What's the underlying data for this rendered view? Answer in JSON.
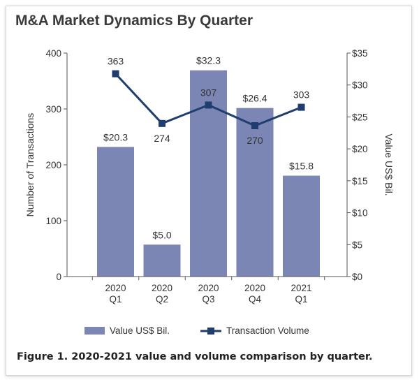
{
  "chart_data": {
    "type": "bar",
    "title": "M&A Market Dynamics By Quarter",
    "categories": [
      [
        "2020",
        "Q1"
      ],
      [
        "2020",
        "Q2"
      ],
      [
        "2020",
        "Q3"
      ],
      [
        "2020",
        "Q4"
      ],
      [
        "2021",
        "Q1"
      ]
    ],
    "series": [
      {
        "name": "Value US$ Bil.",
        "type": "bar",
        "axis": "right",
        "values": [
          20.3,
          5.0,
          32.3,
          26.4,
          15.8
        ],
        "labels": [
          "$20.3",
          "$5.0",
          "$32.3",
          "$26.4",
          "$15.8"
        ],
        "color": "#7b86b5"
      },
      {
        "name": "Transaction Volume",
        "type": "line",
        "axis": "left",
        "values": [
          363,
          274,
          307,
          270,
          303
        ],
        "labels": [
          "363",
          "274",
          "307",
          "270",
          "303"
        ],
        "color": "#1f3d6e"
      }
    ],
    "y_left": {
      "label": "Number of Transactions",
      "range": [
        0,
        400
      ],
      "ticks": [
        0,
        100,
        200,
        300,
        400
      ],
      "tick_labels": [
        "0",
        "100",
        "200",
        "300",
        "400"
      ]
    },
    "y_right": {
      "label": "Value US$ Bil.",
      "range": [
        0,
        35
      ],
      "ticks": [
        0,
        5,
        10,
        15,
        20,
        25,
        30,
        35
      ],
      "tick_labels": [
        "$0",
        "$5",
        "$10",
        "$15",
        "$20",
        "$25",
        "$30",
        "$35"
      ]
    },
    "grid": false,
    "legend_position": "bottom"
  },
  "caption": "Figure 1. 2020-2021 value and volume comparison by quarter.",
  "colors": {
    "bar": "#7b86b5",
    "line": "#1f3d6e",
    "axis": "#555555"
  }
}
